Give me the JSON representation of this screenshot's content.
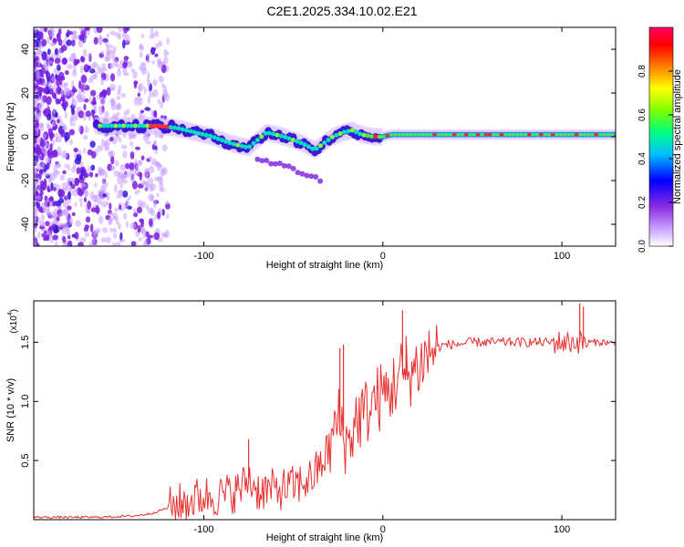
{
  "title": "C2E1.2025.334.10.02.E21",
  "chart_data": [
    {
      "type": "heatmap",
      "title": "C2E1.2025.334.10.02.E21",
      "xlabel": "Height of straight line (km)",
      "ylabel": "Frequency (Hz)",
      "xlim": [
        -195,
        130
      ],
      "ylim": [
        -50,
        50
      ],
      "x_ticks": [
        -100,
        0,
        100
      ],
      "x_tick_labels": [
        "-100",
        "0",
        "100"
      ],
      "y_ticks": [
        -40,
        -20,
        0,
        20,
        40
      ],
      "y_tick_labels": [
        "-40",
        "-20",
        "0",
        "20",
        "40"
      ],
      "colorbar": {
        "label": "Normalized spectral amplitude",
        "range": [
          0,
          1
        ],
        "ticks": [
          0.0,
          0.2,
          0.4,
          0.6,
          0.8
        ],
        "tick_labels": [
          "0.0",
          "0.2",
          "0.4",
          "0.6",
          "0.8"
        ],
        "colors": [
          "#ffffff",
          "#c9a0ff",
          "#8a2be2",
          "#0000ff",
          "#00bfff",
          "#00ff80",
          "#80ff00",
          "#ffff00",
          "#ff8000",
          "#ff0000",
          "#ff0066"
        ]
      },
      "ridge": {
        "x": [
          -155,
          -140,
          -125,
          -115,
          -105,
          -95,
          -85,
          -75,
          -65,
          -55,
          -45,
          -38,
          -33,
          -28,
          -22,
          -17,
          -12,
          -5,
          0,
          5,
          10,
          20,
          40,
          60,
          80,
          100,
          110,
          120,
          130
        ],
        "y": [
          5,
          5,
          5,
          4,
          2,
          0,
          -3,
          -5,
          2,
          0,
          -3,
          -6,
          -3,
          0,
          2,
          3,
          1,
          0,
          0,
          1,
          1,
          1,
          1,
          1,
          1,
          1,
          1,
          1,
          1
        ]
      },
      "secondary_track": {
        "x": [
          -70,
          -60,
          -50,
          -40,
          -35
        ],
        "y": [
          -10,
          -12,
          -15,
          -18,
          -20
        ]
      }
    },
    {
      "type": "line",
      "xlabel": "Height of straight line (km)",
      "ylabel": "SNR (10 * v/v)",
      "y_scale_label": "(x10",
      "y_scale_exp": "4",
      "xlim": [
        -195,
        130
      ],
      "ylim": [
        0,
        1.85
      ],
      "x_ticks": [
        -100,
        0,
        100
      ],
      "x_tick_labels": [
        "-100",
        "0",
        "100"
      ],
      "y_ticks": [
        0.5,
        1.0,
        1.5
      ],
      "y_tick_labels": [
        "0.5",
        "1.0",
        "1.5"
      ],
      "line_color": "#e83030",
      "series": [
        {
          "name": "SNR",
          "x": [
            -195,
            -180,
            -160,
            -140,
            -130,
            -120,
            -110,
            -100,
            -90,
            -80,
            -75,
            -70,
            -60,
            -50,
            -40,
            -35,
            -30,
            -25,
            -22,
            -20,
            -15,
            -10,
            -5,
            0,
            5,
            8,
            10,
            12,
            15,
            20,
            25,
            30,
            35,
            40,
            50,
            60,
            70,
            80,
            90,
            100,
            105,
            108,
            110,
            112,
            115,
            120,
            125,
            130
          ],
          "y": [
            0.02,
            0.02,
            0.02,
            0.03,
            0.05,
            0.1,
            0.15,
            0.2,
            0.2,
            0.25,
            0.35,
            0.25,
            0.25,
            0.28,
            0.35,
            0.45,
            0.6,
            0.85,
            0.75,
            0.6,
            0.85,
            0.9,
            1.0,
            1.05,
            1.1,
            1.2,
            1.25,
            1.2,
            1.25,
            1.3,
            1.4,
            1.45,
            1.48,
            1.48,
            1.5,
            1.5,
            1.5,
            1.5,
            1.5,
            1.5,
            1.5,
            1.5,
            1.5,
            1.5,
            1.5,
            1.5,
            1.5,
            1.48
          ]
        }
      ],
      "spikes": [
        {
          "x": -75,
          "y": 0.68
        },
        {
          "x": -24,
          "y": 1.45
        },
        {
          "x": -22,
          "y": 1.48
        },
        {
          "x": 11,
          "y": 1.77
        },
        {
          "x": 13,
          "y": 1.55
        },
        {
          "x": 110,
          "y": 1.83
        },
        {
          "x": 112,
          "y": 1.8
        }
      ]
    }
  ]
}
